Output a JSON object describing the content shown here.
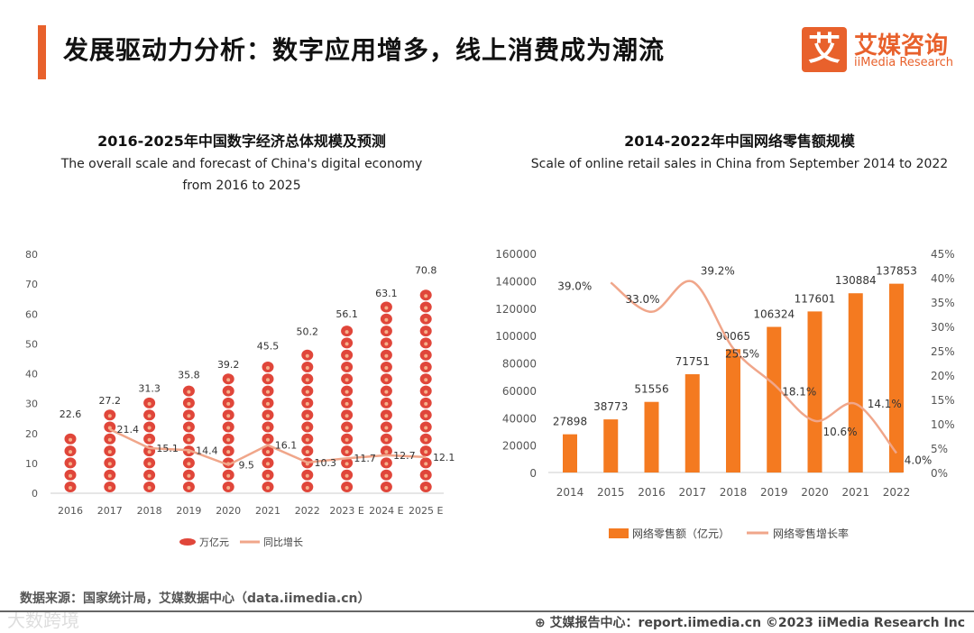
{
  "header": {
    "title": "发展驱动力分析：数字应用增多，线上消费成为潮流",
    "logo_mark": "艾",
    "logo_cn": "艾媒咨询",
    "logo_en": "iiMedia Research"
  },
  "colors": {
    "accent": "#e8612c",
    "bar_red": "#e0463a",
    "bar_orange": "#f47a20",
    "line_salmon": "#f0a68a"
  },
  "chart_data": [
    {
      "type": "bar",
      "title": "2016-2025年中国数字经济总体规模及预测",
      "subtitle_line1": "The overall scale and forecast of China's digital economy",
      "subtitle_line2": "from 2016 to 2025",
      "categories": [
        "2016",
        "2017",
        "2018",
        "2019",
        "2020",
        "2021",
        "2022",
        "2023 E",
        "2024 E",
        "2025 E"
      ],
      "ylim": [
        0,
        80
      ],
      "yticks": [
        "0",
        "10",
        "20",
        "30",
        "40",
        "50",
        "60",
        "70",
        "80"
      ],
      "series": [
        {
          "name": "万亿元",
          "kind": "bar",
          "values": [
            22.6,
            27.2,
            31.3,
            35.8,
            39.2,
            45.5,
            50.2,
            56.1,
            63.1,
            70.8
          ]
        },
        {
          "name": "同比增长",
          "kind": "line",
          "values": [
            null,
            21.4,
            15.1,
            14.4,
            9.5,
            16.1,
            10.3,
            11.7,
            12.7,
            12.1
          ]
        }
      ],
      "legend": "bottom"
    },
    {
      "type": "bar",
      "title": "2014-2022年中国网络零售额规模",
      "subtitle_line1": "Scale of online retail sales in China from September 2014 to 2022",
      "categories": [
        "2014",
        "2015",
        "2016",
        "2017",
        "2018",
        "2019",
        "2020",
        "2021",
        "2022"
      ],
      "ylim": [
        0,
        160000
      ],
      "yticks": [
        "0",
        "20000",
        "40000",
        "60000",
        "80000",
        "100000",
        "120000",
        "140000",
        "160000"
      ],
      "y2lim": [
        0,
        45
      ],
      "y2ticks": [
        "0%",
        "5%",
        "10%",
        "15%",
        "20%",
        "25%",
        "30%",
        "35%",
        "40%",
        "45%"
      ],
      "series": [
        {
          "name": "网络零售额（亿元）",
          "kind": "bar",
          "values": [
            27898,
            38773,
            51556,
            71751,
            90065,
            106324,
            117601,
            130884,
            137853
          ]
        },
        {
          "name": "网络零售增长率",
          "kind": "line",
          "axis": "right",
          "values": [
            null,
            39.0,
            33.0,
            39.2,
            25.5,
            18.1,
            10.6,
            14.1,
            4.0
          ],
          "labels": [
            null,
            "39.0%",
            "33.0%",
            "39.2%",
            "25.5%",
            "18.1%",
            "10.6%",
            "14.1%",
            "4.0%"
          ]
        }
      ],
      "legend": "bottom"
    }
  ],
  "footer": {
    "source": "数据来源：国家统计局，艾媒数据中心（data.iimedia.cn）",
    "copyright": "艾媒报告中心：report.iimedia.cn ©2023 iiMedia Research Inc",
    "watermark": "大数跨境"
  }
}
